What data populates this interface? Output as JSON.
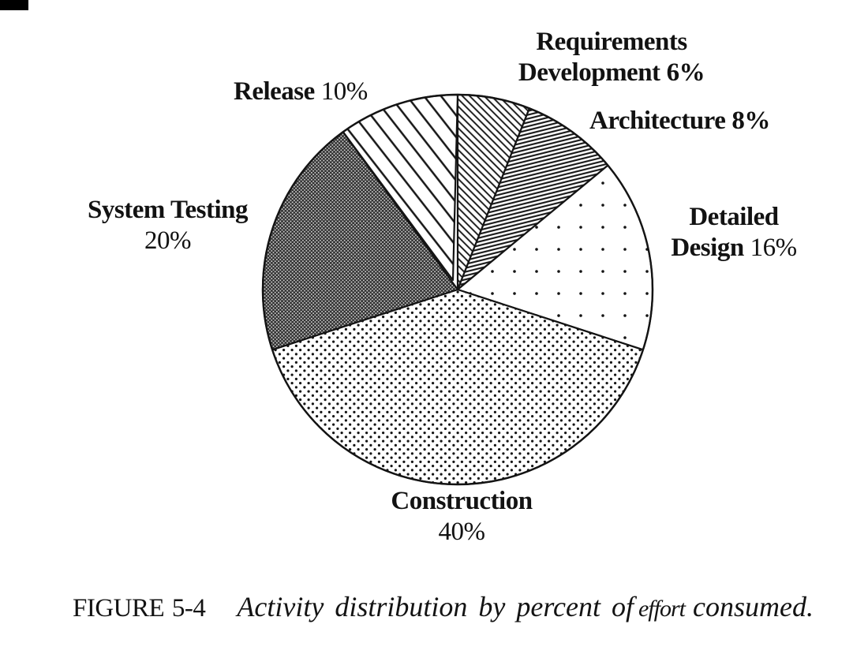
{
  "labels": {
    "requirements": {
      "line1": "Requirements",
      "line2": "Development",
      "pct": "6%"
    },
    "architecture": {
      "name": "Architecture",
      "pct": "8%"
    },
    "detailed_design": {
      "line1": "Detailed",
      "line2": "Design",
      "pct": "16%"
    },
    "construction": {
      "name": "Construction",
      "pct": "40%"
    },
    "system_testing": {
      "name": "System Testing",
      "pct": "20%"
    },
    "release": {
      "name": "Release",
      "pct": "10%"
    }
  },
  "caption": {
    "figure_label": "FIGURE 5-4",
    "text_parts": [
      "Activity distribution by percent of",
      "effort",
      "consumed."
    ]
  },
  "chart_data": {
    "type": "pie",
    "categories": [
      "Requirements Development",
      "Architecture",
      "Detailed Design",
      "Construction",
      "System Testing",
      "Release"
    ],
    "values": [
      6,
      8,
      16,
      40,
      20,
      10
    ],
    "unit": "percent of effort",
    "title": "Activity distribution by percent of effort consumed",
    "start_angle": "12 o'clock",
    "direction": "clockwise",
    "slice_patterns": [
      "diagonal-hatch",
      "dense-diagonal-lines",
      "sparse-dots",
      "medium-dots",
      "dark-woven",
      "wide-diagonal-stripes"
    ],
    "colors": {
      "ink": "#141414",
      "paper": "#ffffff"
    }
  }
}
